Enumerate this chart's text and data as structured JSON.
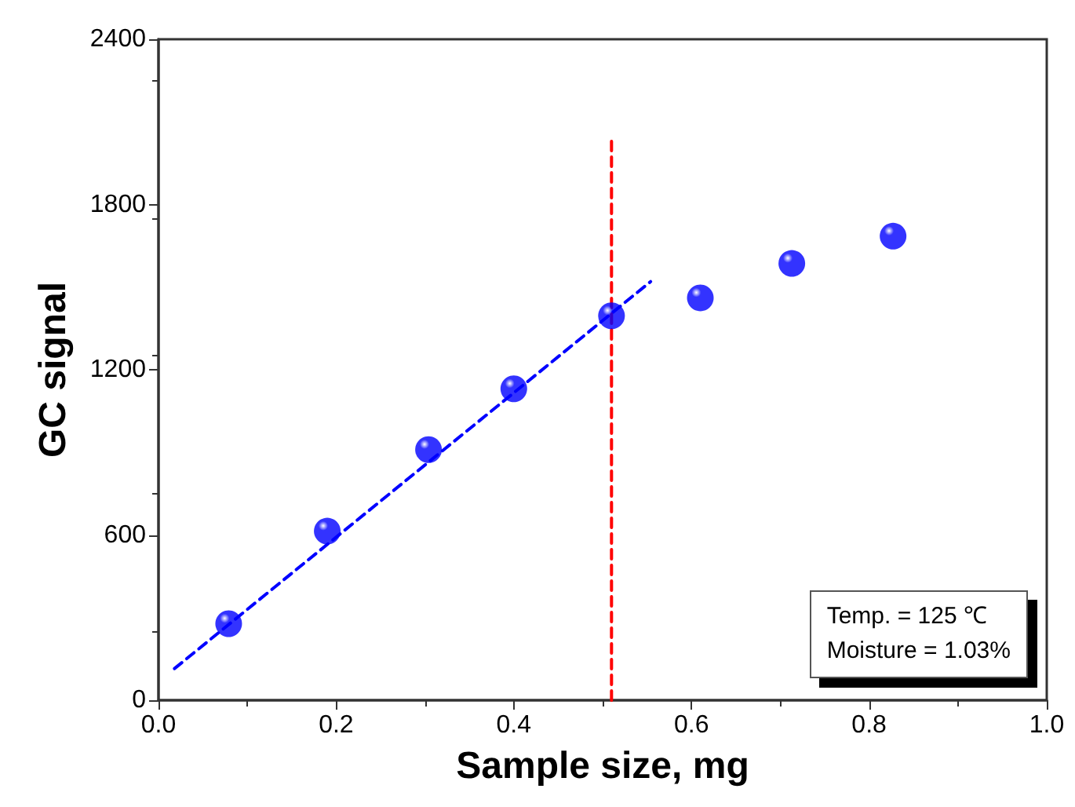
{
  "chart_data": {
    "type": "scatter",
    "xlabel": "Sample size, mg",
    "ylabel": "GC signal",
    "xlim": [
      0,
      1
    ],
    "xticks": [
      {
        "value": 0,
        "label": "0.0"
      },
      {
        "value": 0.2,
        "label": "0.2"
      },
      {
        "value": 0.4,
        "label": "0.4"
      },
      {
        "value": 0.6,
        "label": "0.6"
      },
      {
        "value": 0.8,
        "label": "0.8"
      },
      {
        "value": 1,
        "label": "1.0"
      }
    ],
    "ylim": [
      0,
      2400
    ],
    "yticks": [
      0,
      600,
      1200,
      1800,
      2400
    ],
    "grid": false,
    "marker": "circle",
    "series": [
      {
        "color": "#0000ff",
        "x": [
          0.079,
          0.19,
          0.304,
          0.4,
          0.51,
          0.61,
          0.713,
          0.827
        ],
        "values": [
          278,
          614,
          910,
          1131,
          1396,
          1461,
          1586,
          1685
        ]
      },
      {
        "type": "line",
        "color": "#0000ff",
        "line_style": "dashed",
        "marker": "none",
        "x": [
          0.018,
          0.554
        ],
        "values": [
          115,
          1520
        ]
      },
      {
        "type": "line",
        "color": "#ff0000",
        "line_style": "dashed",
        "marker": "none",
        "x": [
          0.51,
          0.51
        ],
        "values": [
          0,
          2040
        ]
      }
    ],
    "annotations": [
      "Temp. = 125 ℃",
      "Moisture = 1.03%"
    ]
  }
}
